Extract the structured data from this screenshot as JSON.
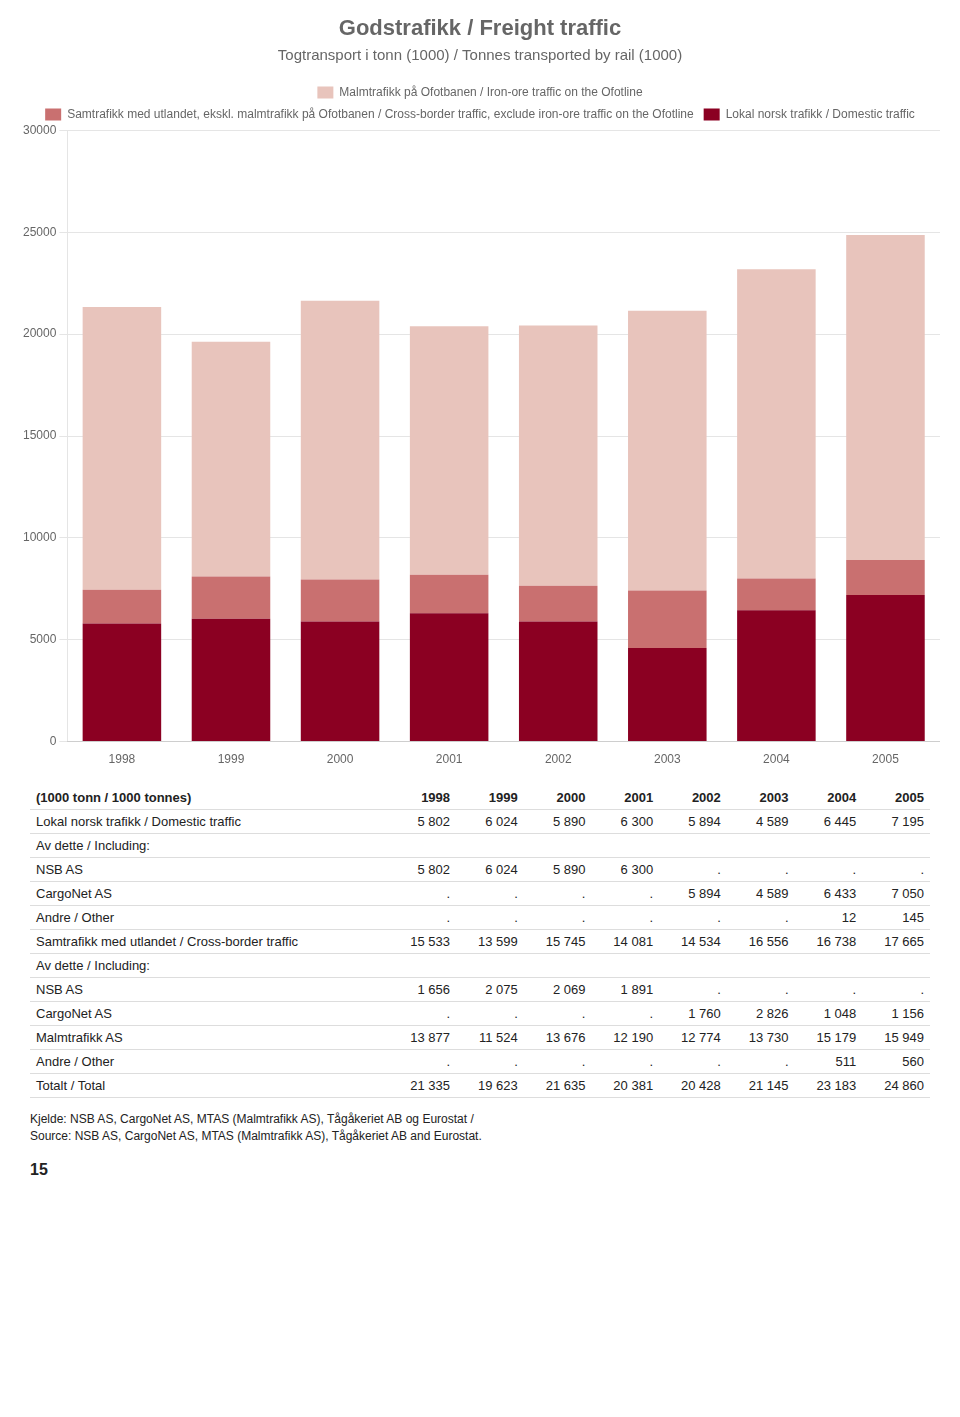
{
  "chart_data": {
    "type": "bar",
    "title": "Godstrafikk / Freight traffic",
    "subtitle": "Togtransport i tonn (1000) / Tonnes transported by rail (1000)",
    "categories": [
      "1998",
      "1999",
      "2000",
      "2001",
      "2002",
      "2003",
      "2004",
      "2005"
    ],
    "series": [
      {
        "name": "Lokal norsk trafikk / Domestic traffic",
        "color": "#8B0022",
        "values": [
          5802,
          6024,
          5890,
          6300,
          5894,
          4589,
          6445,
          7195
        ]
      },
      {
        "name": "Samtrafikk med utlandet, ekskl. malmtrafikk på Ofotbanen / Cross-border traffic, exclude iron-ore traffic on the Ofotline",
        "color": "#C97070",
        "values": [
          1656,
          2075,
          2069,
          1891,
          1760,
          2826,
          1559,
          1716
        ]
      },
      {
        "name": "Malmtrafikk på Ofotbanen / Iron-ore traffic on the Ofotline",
        "color": "#E8C4BC",
        "values": [
          13877,
          11524,
          13676,
          12190,
          12774,
          13730,
          15179,
          15949
        ]
      }
    ],
    "stacked": true,
    "ylim": [
      0,
      30000
    ],
    "yticks": [
      0,
      5000,
      10000,
      15000,
      20000,
      25000,
      30000
    ],
    "grid": true,
    "legend": "top"
  },
  "table": {
    "unit": "(1000 tonn / 1000 tonnes)",
    "headers": [
      "1998",
      "1999",
      "2000",
      "2001",
      "2002",
      "2003",
      "2004",
      "2005"
    ],
    "rows": [
      {
        "label": "Lokal norsk trafikk / Domestic traffic",
        "values": [
          "5 802",
          "6 024",
          "5 890",
          "6 300",
          "5 894",
          "4 589",
          "6 445",
          "7 195"
        ]
      },
      {
        "label": "Av dette / Including:"
      },
      {
        "label": "NSB AS",
        "values": [
          "5 802",
          "6 024",
          "5 890",
          "6 300",
          ".",
          ".",
          ".",
          "."
        ]
      },
      {
        "label": "CargoNet AS",
        "values": [
          ".",
          ".",
          ".",
          ".",
          "5 894",
          "4 589",
          "6 433",
          "7 050"
        ]
      },
      {
        "label": "Andre / Other",
        "values": [
          ".",
          ".",
          ".",
          ".",
          ".",
          ".",
          "12",
          "145"
        ]
      },
      {
        "label": "Samtrafikk med utlandet / Cross-border traffic",
        "values": [
          "15 533",
          "13 599",
          "15 745",
          "14 081",
          "14 534",
          "16 556",
          "16 738",
          "17 665"
        ]
      },
      {
        "label": "Av dette / Including:"
      },
      {
        "label": "NSB AS",
        "values": [
          "1 656",
          "2 075",
          "2 069",
          "1 891",
          ".",
          ".",
          ".",
          "."
        ]
      },
      {
        "label": "CargoNet AS",
        "values": [
          ".",
          ".",
          ".",
          ".",
          "1 760",
          "2 826",
          "1 048",
          "1 156"
        ]
      },
      {
        "label": "Malmtrafikk AS",
        "values": [
          "13 877",
          "11 524",
          "13 676",
          "12 190",
          "12 774",
          "13 730",
          "15 179",
          "15 949"
        ]
      },
      {
        "label": "Andre / Other",
        "values": [
          ".",
          ".",
          ".",
          ".",
          ".",
          ".",
          "511",
          "560"
        ]
      },
      {
        "label": "Totalt / Total",
        "values": [
          "21 335",
          "19 623",
          "21 635",
          "20 381",
          "20 428",
          "21 145",
          "23 183",
          "24 860"
        ]
      }
    ]
  },
  "source": [
    "Kjelde: NSB AS, CargoNet AS, MTAS (Malmtrafikk AS), Tågåkeriet AB og Eurostat /",
    "Source: NSB AS, CargoNet AS, MTAS (Malmtrafikk AS), Tågåkeriet AB and Eurostat."
  ],
  "page": "15"
}
